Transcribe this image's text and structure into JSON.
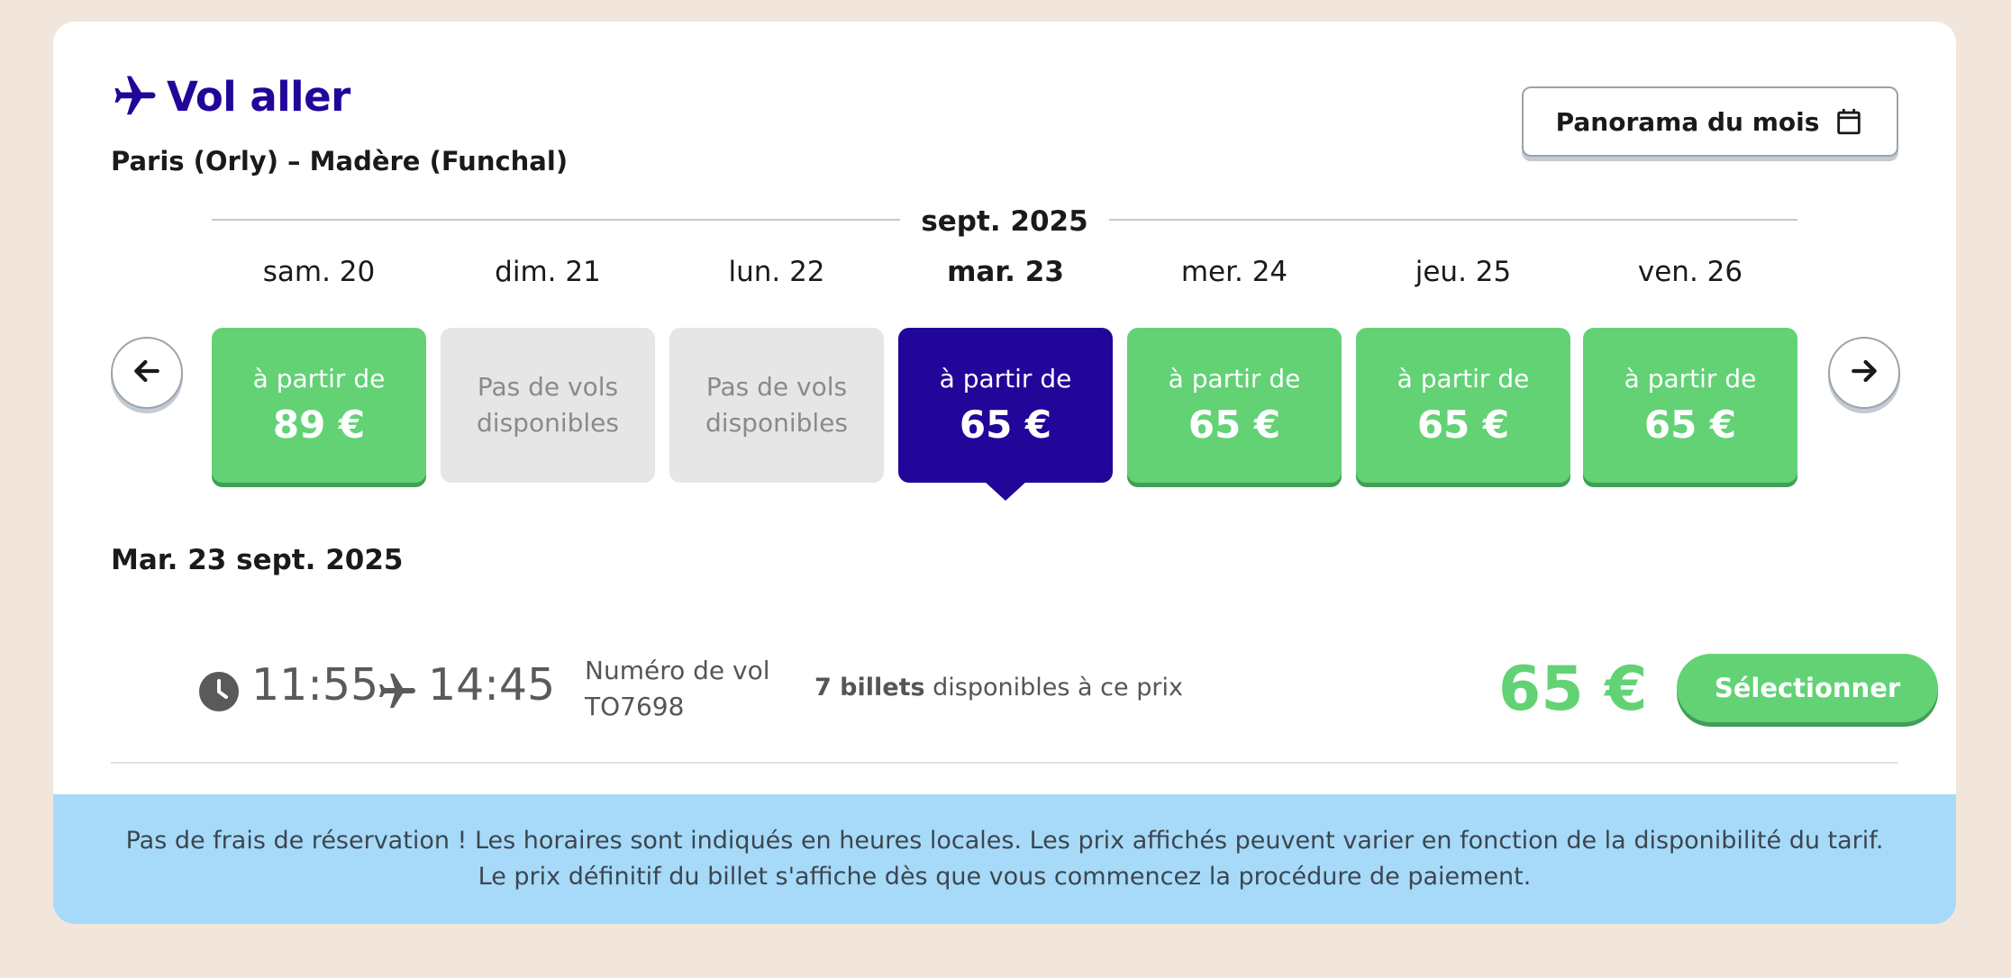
{
  "header": {
    "title": "Vol aller",
    "route": "Paris (Orly) – Madère (Funchal)",
    "panorama_label": "Panorama du mois"
  },
  "calendar": {
    "month": "sept. 2025",
    "days": [
      {
        "label": "sam. 20",
        "status": "available",
        "from": "à partir de",
        "price": "89 €"
      },
      {
        "label": "dim. 21",
        "status": "unavailable",
        "none_line1": "Pas de vols",
        "none_line2": "disponibles"
      },
      {
        "label": "lun. 22",
        "status": "unavailable",
        "none_line1": "Pas de vols",
        "none_line2": "disponibles"
      },
      {
        "label": "mar. 23",
        "status": "selected",
        "from": "à partir de",
        "price": "65 €"
      },
      {
        "label": "mer. 24",
        "status": "available",
        "from": "à partir de",
        "price": "65 €"
      },
      {
        "label": "jeu. 25",
        "status": "available",
        "from": "à partir de",
        "price": "65 €"
      },
      {
        "label": "ven. 26",
        "status": "available",
        "from": "à partir de",
        "price": "65 €"
      }
    ]
  },
  "selected_date": "Mar. 23 sept. 2025",
  "flight": {
    "departure": "11:55",
    "arrival": "14:45",
    "flight_number_label": "Numéro de vol",
    "flight_number": "TO7698",
    "tickets_count": "7 billets",
    "tickets_text": "disponibles à ce prix",
    "price": "65 €",
    "select_label": "Sélectionner"
  },
  "notice": "Pas de frais de réservation ! Les horaires sont indiqués en heures locales. Les prix affichés peuvent varier en fonction de la disponibilité du tarif. Le prix définitif du billet s'affiche dès que vous commencez la procédure de paiement.",
  "colors": {
    "brand": "#22069a",
    "green": "#62d275",
    "gray_tile": "#e6e6e6",
    "notice_bg": "#a7daf8",
    "page_bg": "#f2e6dc"
  },
  "icons": [
    "airplane-icon",
    "calendar-icon",
    "arrow-left-icon",
    "arrow-right-icon",
    "clock-icon"
  ]
}
